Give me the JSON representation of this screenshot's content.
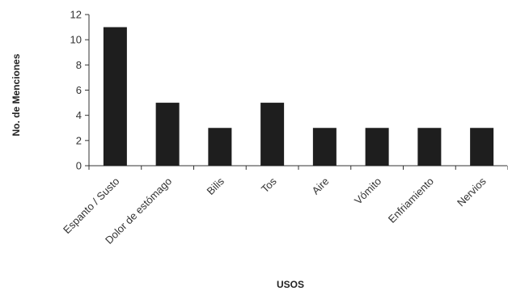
{
  "chart_data": {
    "type": "bar",
    "categories": [
      "Espanto / Susto",
      "Dolor de estómago",
      "Bilis",
      "Tos",
      "Aire",
      "Vómito",
      "Enfriamiento",
      "Nervios"
    ],
    "values": [
      11,
      5,
      3,
      5,
      3,
      3,
      3,
      3
    ],
    "xlabel": "USOS",
    "ylabel": "No. de Menciones",
    "ylim": [
      0,
      12
    ],
    "yticks": [
      0,
      2,
      4,
      6,
      8,
      10,
      12
    ],
    "grid": false,
    "legend": "none",
    "bar_color": "#1e1e1e"
  }
}
